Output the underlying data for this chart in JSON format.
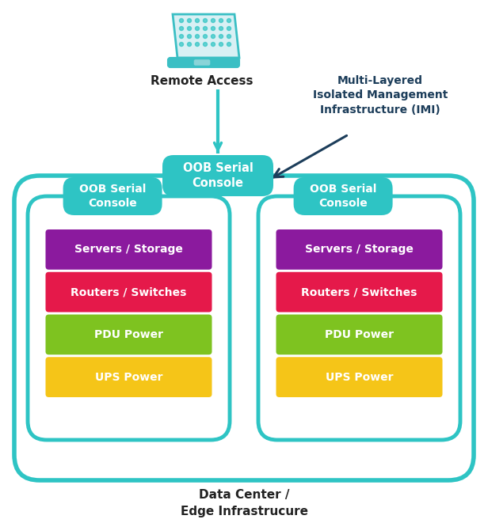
{
  "bg_color": "#ffffff",
  "teal": "#2ec4c4",
  "dark_navy": "#1c3d5a",
  "purple": "#8b1a9e",
  "crimson": "#e5194a",
  "green": "#7ec320",
  "yellow": "#f5c518",
  "white": "#ffffff",
  "text_dark": "#222222",
  "laptop_color": "#3bbfc4",
  "remote_access_text": "Remote Access",
  "imi_text": "Multi-Layered\nIsolated Management\nInfrastructure (IMI)",
  "oob_text": "OOB Serial\nConsole",
  "datacenter_text": "Data Center /\nEdge Infrastrucure",
  "layer_labels": [
    "Servers / Storage",
    "Routers / Switches",
    "PDU Power",
    "UPS Power"
  ],
  "layer_colors": [
    "#8b1a9e",
    "#e5194a",
    "#7ec320",
    "#f5c518"
  ],
  "figw": 6.16,
  "figh": 6.61,
  "dpi": 100
}
